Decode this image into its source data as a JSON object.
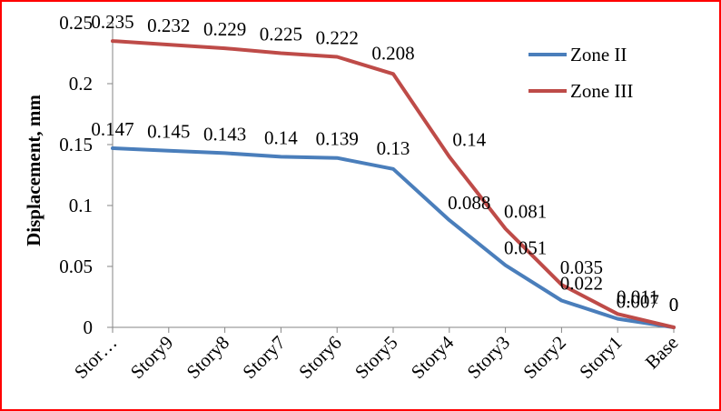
{
  "chart_data": {
    "type": "line",
    "title": "",
    "xlabel": "",
    "ylabel": "Displacement, mm",
    "ylim": [
      0,
      0.25
    ],
    "yticks": [
      "0",
      "0.05",
      "0.1",
      "0.15",
      "0.2",
      "0.25"
    ],
    "categories": [
      "Stor…",
      "Story9",
      "Story8",
      "Story7",
      "Story6",
      "Story5",
      "Story4",
      "Story3",
      "Story2",
      "Story1",
      "Base"
    ],
    "series": [
      {
        "name": "Zone II",
        "color": "#4a7ebb",
        "values": [
          0.147,
          0.145,
          0.143,
          0.14,
          0.139,
          0.13,
          0.088,
          0.051,
          0.022,
          0.007,
          0
        ],
        "labels": [
          "0.147",
          "0.145",
          "0.143",
          "0.14",
          "0.139",
          "0.13",
          "0.088",
          "0.051",
          "0.022",
          "0.007",
          "0"
        ]
      },
      {
        "name": "Zone III",
        "color": "#be4b48",
        "values": [
          0.235,
          0.232,
          0.229,
          0.225,
          0.222,
          0.208,
          0.14,
          0.081,
          0.035,
          0.011,
          0
        ],
        "labels": [
          "0.235",
          "0.232",
          "0.229",
          "0.225",
          "0.222",
          "0.208",
          "0.14",
          "0.081",
          "0.035",
          "0.011",
          "0"
        ]
      }
    ],
    "grid": false,
    "legend": "right"
  }
}
